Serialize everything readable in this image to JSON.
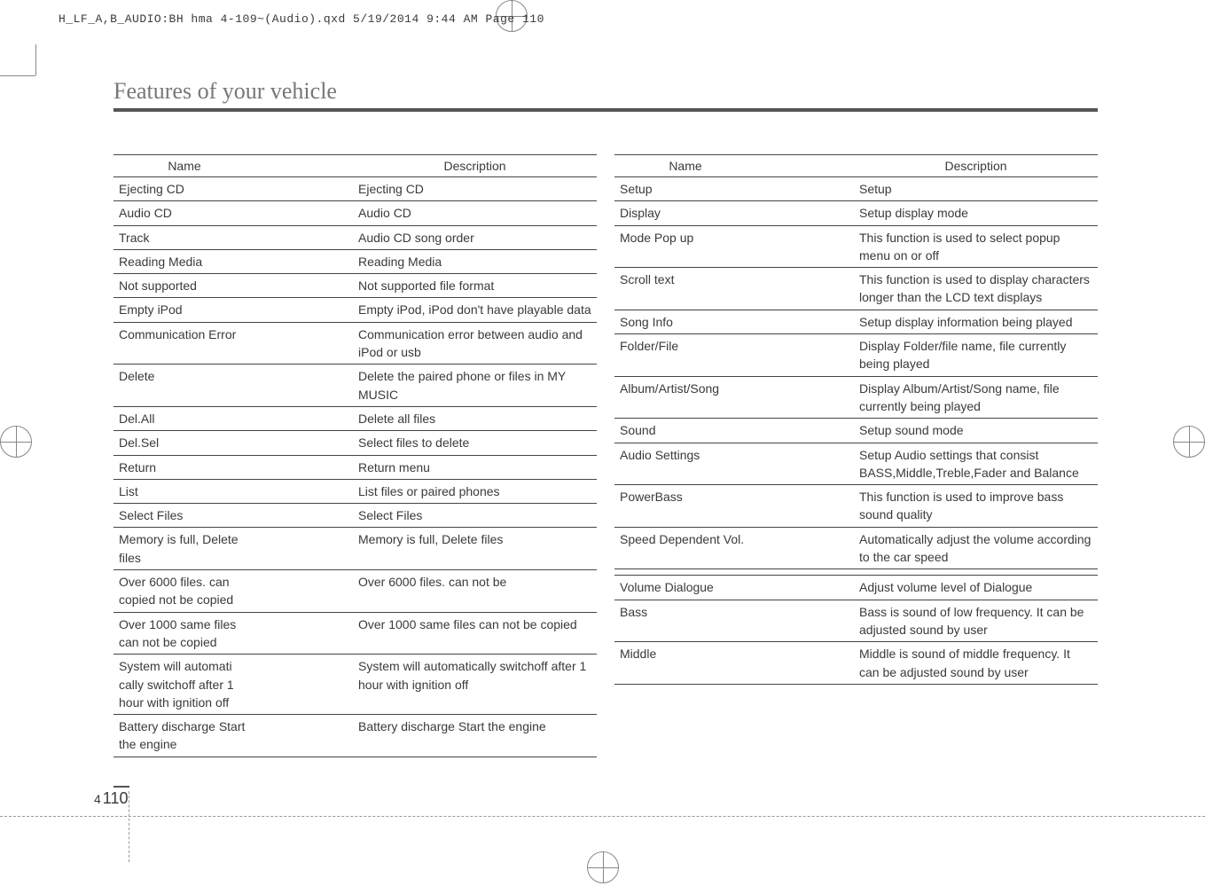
{
  "header_path": "H_LF_A,B_AUDIO:BH hma 4-109~(Audio).qxd  5/19/2014  9:44 AM  Page 110",
  "section_title": "Features of your vehicle",
  "page_chapter": "4",
  "page_number": "110",
  "table_headers": {
    "name": "Name",
    "desc": "Description"
  },
  "left_rows": [
    {
      "name": "Ejecting CD",
      "desc": "Ejecting CD"
    },
    {
      "name": "Audio CD",
      "desc": "Audio CD"
    },
    {
      "name": "Track",
      "desc": "Audio CD song order"
    },
    {
      "name": "Reading Media",
      "desc": "Reading Media"
    },
    {
      "name": "Not supported",
      "desc": "Not supported file format"
    },
    {
      "name": "Empty iPod",
      "desc": "Empty iPod, iPod don't have playable data"
    },
    {
      "name": "Communication Error",
      "desc": "Communication error between audio and iPod or usb"
    },
    {
      "name": "Delete",
      "desc": "Delete the paired phone or files in MY MUSIC"
    },
    {
      "name": "Del.All",
      "desc": "Delete all files"
    },
    {
      "name": "Del.Sel",
      "desc": "Select files to delete"
    },
    {
      "name": "Return",
      "desc": "Return menu"
    },
    {
      "name": "List",
      "desc": "List files or paired phones"
    },
    {
      "name": "Select Files",
      "desc": "Select Files"
    },
    {
      "name": "Memory is full, Delete files",
      "desc": "Memory is full, Delete files"
    },
    {
      "name": "Over 6000 files. can copied not be copied",
      "desc": "Over 6000 files. can not be"
    },
    {
      "name": "Over 1000 same files can not be copied",
      "desc": "Over 1000 same files can not be copied"
    },
    {
      "name": "System will automati cally switchoff after 1 hour with ignition off",
      "desc": "System will automatically switchoff after 1 hour with ignition off"
    },
    {
      "name": "Battery discharge Start the engine",
      "desc": "Battery discharge Start the engine"
    }
  ],
  "right_rows": [
    {
      "name": "Setup",
      "desc": "Setup"
    },
    {
      "name": "Display",
      "desc": "Setup display mode"
    },
    {
      "name": "Mode Pop up",
      "desc": "This function is used to select popup menu on or off"
    },
    {
      "name": "Scroll text",
      "desc": "This function is used to display characters longer than the LCD text displays"
    },
    {
      "name": "Song Info",
      "desc": "Setup display information being played"
    },
    {
      "name": "Folder/File",
      "desc": "Display Folder/file name, file currently being played"
    },
    {
      "name": "Album/Artist/Song",
      "desc": "Display Album/Artist/Song name, file currently being played"
    },
    {
      "name": "Sound",
      "desc": "Setup sound mode"
    },
    {
      "name": "Audio Settings",
      "desc": "Setup Audio settings that consist BASS,Middle,Treble,Fader and Balance"
    },
    {
      "name": "PowerBass",
      "desc": "This function is used to improve bass sound quality"
    },
    {
      "name": "Speed Dependent Vol.",
      "desc": "Automatically adjust the volume according to the car speed"
    },
    {
      "name": "",
      "desc": ""
    },
    {
      "name": "Volume Dialogue",
      "desc": "Adjust volume level of Dialogue"
    },
    {
      "name": "Bass",
      "desc": "Bass is sound of low frequency. It can be adjusted sound by user"
    },
    {
      "name": "Middle",
      "desc": "Middle is sound of middle frequency. It can be adjusted sound by user"
    }
  ]
}
